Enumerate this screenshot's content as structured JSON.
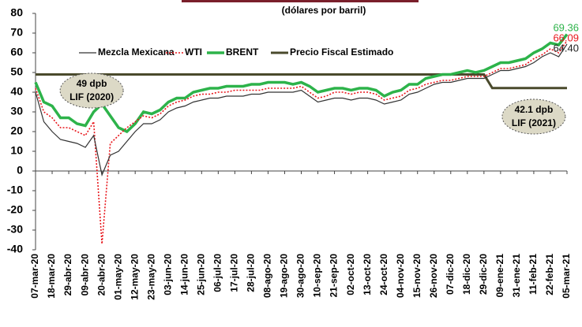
{
  "chart_data": {
    "type": "line",
    "subtitle": "(dólares por barril)",
    "categories": [
      "07-mar-20",
      null,
      "18-mar-20",
      null,
      "29-abr-20",
      null,
      "09-abr-20",
      null,
      "20-abr-20",
      null,
      "01-may-20",
      null,
      "12-may-20",
      null,
      "23-may-20",
      null,
      "03-jun-20",
      null,
      "14-jun-20",
      null,
      "25-jun-20",
      null,
      "06-jul-20",
      null,
      "17-jul-20",
      null,
      "28-jul-20",
      null,
      "08-ago-20",
      null,
      "19-ago-20",
      null,
      "30-ago-20",
      null,
      "10-sep-20",
      null,
      "21-sep-20",
      null,
      "02-oct-20",
      null,
      "13-oct-20",
      null,
      "24-oct-20",
      null,
      "04-nov-20",
      null,
      "15-nov-20",
      null,
      "26-nov-20",
      null,
      "07-dic-20",
      null,
      "18-dic-20",
      null,
      "29-dic-20",
      null,
      "09-ene-21",
      null,
      "31-ene-21",
      null,
      "11-feb-21",
      null,
      "22-feb-21",
      null,
      "05-mar-21"
    ],
    "series": [
      {
        "name": "Mezcla Mexicana",
        "color": "#333333",
        "style": "solid",
        "width": 1.2,
        "values": [
          40,
          25,
          20,
          16,
          15,
          14,
          12,
          18,
          -2,
          8,
          10,
          15,
          20,
          24,
          24,
          26,
          30,
          32,
          33,
          35,
          36,
          37,
          37,
          38,
          38,
          38,
          39,
          39,
          40,
          40,
          40,
          40,
          41,
          38,
          35,
          36,
          37,
          37,
          36,
          37,
          37,
          36,
          34,
          35,
          36,
          39,
          40,
          42,
          44,
          45,
          45,
          46,
          47,
          47,
          47,
          49,
          51,
          51,
          52,
          53,
          55,
          58,
          60,
          58,
          64.4
        ],
        "value_labels": [
          null,
          null,
          null,
          null,
          null,
          null,
          null,
          null,
          null,
          null,
          null,
          null,
          null,
          null,
          null,
          null,
          null,
          null,
          null,
          null,
          null,
          null,
          null,
          null,
          null,
          null,
          null,
          null,
          null,
          null,
          null,
          null,
          null,
          null,
          null,
          null,
          null,
          null,
          null,
          null,
          null,
          null,
          null,
          null,
          null,
          null,
          null,
          null,
          null,
          null,
          null,
          null,
          null,
          null,
          null,
          null,
          null,
          null,
          null,
          null,
          null,
          null,
          null,
          null,
          "64.40"
        ]
      },
      {
        "name": "WTI",
        "color": "#e8161b",
        "style": "dotted",
        "width": 1.6,
        "values": [
          42,
          30,
          27,
          22,
          22,
          20,
          18,
          25,
          -37,
          14,
          18,
          22,
          25,
          28,
          27,
          29,
          33,
          35,
          36,
          38,
          39,
          39,
          40,
          40,
          41,
          41,
          41,
          41,
          42,
          42,
          42,
          42,
          43,
          40,
          37,
          38,
          40,
          40,
          39,
          40,
          40,
          39,
          36,
          37,
          38,
          41,
          42,
          44,
          45,
          46,
          46,
          47,
          48,
          48,
          48,
          50,
          52,
          52,
          53,
          54,
          57,
          59,
          62,
          60,
          66.09
        ]
      },
      {
        "name": "BRENT",
        "color": "#2db34a",
        "style": "solid",
        "width": 3.5,
        "values": [
          45,
          35,
          33,
          27,
          27,
          24,
          23,
          30,
          34,
          28,
          22,
          20,
          24,
          30,
          29,
          31,
          35,
          37,
          37,
          40,
          41,
          42,
          42,
          43,
          43,
          43,
          44,
          44,
          45,
          45,
          45,
          44,
          45,
          43,
          40,
          41,
          42,
          42,
          41,
          42,
          42,
          41,
          38,
          40,
          41,
          44,
          44,
          47,
          48,
          49,
          49,
          50,
          51,
          50,
          51,
          53,
          55,
          55,
          56,
          57,
          60,
          62,
          65,
          64,
          69.36
        ]
      },
      {
        "name": "Precio Fiscal Estimado",
        "color": "#4a4a2c",
        "style": "solid",
        "width": 3,
        "values": [
          49,
          49,
          49,
          49,
          49,
          49,
          49,
          49,
          49,
          49,
          49,
          49,
          49,
          49,
          49,
          49,
          49,
          49,
          49,
          49,
          49,
          49,
          49,
          49,
          49,
          49,
          49,
          49,
          49,
          49,
          49,
          49,
          49,
          49,
          49,
          49,
          49,
          49,
          49,
          49,
          49,
          49,
          49,
          49,
          49,
          49,
          49,
          49,
          49,
          49,
          49,
          49,
          49,
          49,
          49,
          42.1,
          42.1,
          42.1,
          42.1,
          42.1,
          42.1,
          42.1,
          42.1,
          42.1,
          42.1
        ]
      }
    ],
    "end_labels": [
      2,
      1,
      0
    ],
    "annotations": [
      {
        "lines": [
          "49 dpb",
          "LIF (2020)"
        ],
        "at": 6
      },
      {
        "lines": [
          "42.1 dpb",
          "LIF (2021)"
        ],
        "at": 60
      }
    ],
    "ylim": [
      -40,
      80
    ],
    "yticks": [
      -40,
      -30,
      -20,
      -10,
      0,
      10,
      20,
      30,
      40,
      50,
      60,
      70,
      80
    ],
    "grid": false
  }
}
